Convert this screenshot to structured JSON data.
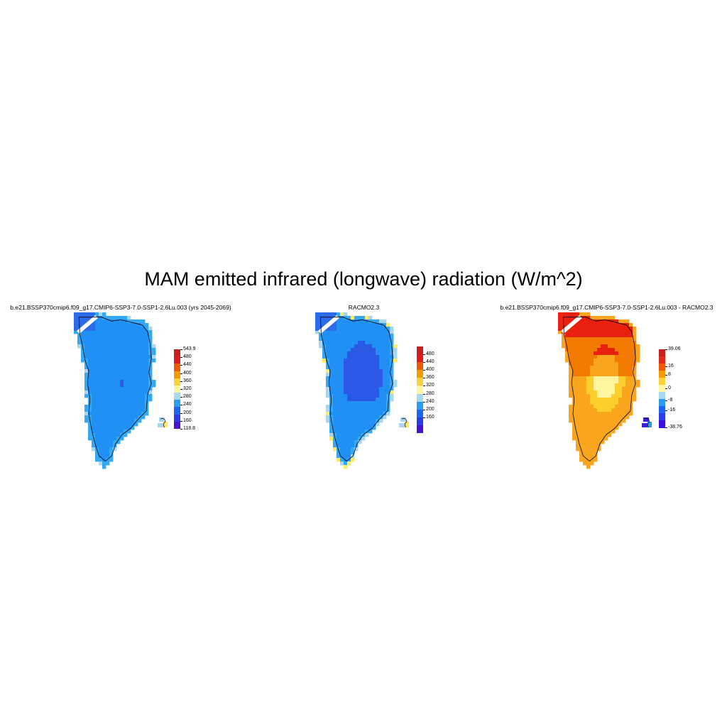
{
  "figure": {
    "title": "MAM emitted infrared (longwave) radiation (W/m^2)"
  },
  "panels": [
    {
      "title": "b.e21.BSSP370cmip6.f09_g17.CMIP6-SSP3-7.0-SSP1-2.6Lu.003 (yrs 2045-2069)",
      "colorbar": {
        "labels": [
          "543.9",
          "480",
          "440",
          "400",
          "360",
          "320",
          "280",
          "240",
          "200",
          "160",
          "118.8"
        ],
        "colors": [
          "#c81e1e",
          "#e01a1a",
          "#ee5a00",
          "#f79a00",
          "#fcd23c",
          "#fdf5a0",
          "#a8d8f0",
          "#2a9df0",
          "#1e64f0",
          "#2a3ce6",
          "#4a10d0"
        ]
      },
      "field_colors": [
        "#2190f4",
        "#1e8ff2",
        "#33a8f4",
        "#a9d6ef",
        "#2b5be8"
      ]
    },
    {
      "title": "RACMO2.3",
      "colorbar": {
        "labels": [
          "480",
          "440",
          "400",
          "360",
          "320",
          "280",
          "240",
          "200",
          "160"
        ],
        "colors": [
          "#c81e1e",
          "#e01a1a",
          "#ee5a00",
          "#f79a00",
          "#fcd23c",
          "#fdf5a0",
          "#a8d8f0",
          "#2a9df0",
          "#1e64f0",
          "#2a3ce6",
          "#4a10d0"
        ]
      },
      "field_colors": [
        "#2190f4",
        "#2c58e6",
        "#33a8f4",
        "#a9d6ef",
        "#fde96a"
      ]
    },
    {
      "title": "b.e21.BSSP370cmip6.f09_g17.CMIP6-SSP3-7.0-SSP1-2.6Lu.003 - RACMO2.3",
      "colorbar": {
        "labels": [
          "39.06",
          "16",
          "8",
          "0",
          "-8",
          "-16",
          "-38.76"
        ],
        "colors": [
          "#c81e1e",
          "#e02a1a",
          "#ee5a00",
          "#f79a00",
          "#fcd23c",
          "#fdf5a0",
          "#a8d8f0",
          "#2a9df0",
          "#1e64f0",
          "#2a3ce6",
          "#3a10e0"
        ]
      },
      "field_colors": [
        "#e8200e",
        "#f27a00",
        "#f9a51e",
        "#fccf2c",
        "#fdf5a0",
        "#2a9df0",
        "#3a20e0"
      ]
    }
  ]
}
